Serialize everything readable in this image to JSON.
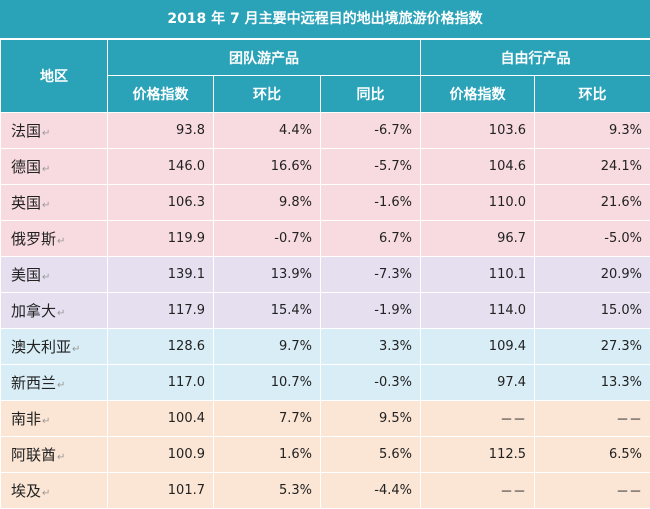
{
  "title": "2018 年 7 月主要中远程目的地出境旅游价格指数",
  "header": {
    "region": "地区",
    "group_tour": "团队游产品",
    "free_tour": "自由行产品",
    "price_index": "价格指数",
    "mom": "环比",
    "yoy": "同比"
  },
  "colors": {
    "header_bg": "#2aa3b9",
    "europe": "#f8dbe1",
    "north_america": "#e5dff0",
    "oceania": "#d8edf5",
    "africa_middle_east": "#fbe5d4"
  },
  "rows": [
    {
      "region": "法国",
      "g_price": "93.8",
      "g_mom": "4.4%",
      "g_yoy": "-6.7%",
      "f_price": "103.6",
      "f_mom": "9.3%"
    },
    {
      "region": "德国",
      "g_price": "146.0",
      "g_mom": "16.6%",
      "g_yoy": "-5.7%",
      "f_price": "104.6",
      "f_mom": "24.1%"
    },
    {
      "region": "英国",
      "g_price": "106.3",
      "g_mom": "9.8%",
      "g_yoy": "-1.6%",
      "f_price": "110.0",
      "f_mom": "21.6%"
    },
    {
      "region": "俄罗斯",
      "g_price": "119.9",
      "g_mom": "-0.7%",
      "g_yoy": "6.7%",
      "f_price": "96.7",
      "f_mom": "-5.0%"
    },
    {
      "region": "美国",
      "g_price": "139.1",
      "g_mom": "13.9%",
      "g_yoy": "-7.3%",
      "f_price": "110.1",
      "f_mom": "20.9%"
    },
    {
      "region": "加拿大",
      "g_price": "117.9",
      "g_mom": "15.4%",
      "g_yoy": "-1.9%",
      "f_price": "114.0",
      "f_mom": "15.0%"
    },
    {
      "region": "澳大利亚",
      "g_price": "128.6",
      "g_mom": "9.7%",
      "g_yoy": "3.3%",
      "f_price": "109.4",
      "f_mom": "27.3%"
    },
    {
      "region": "新西兰",
      "g_price": "117.0",
      "g_mom": "10.7%",
      "g_yoy": "-0.3%",
      "f_price": "97.4",
      "f_mom": "13.3%"
    },
    {
      "region": "南非",
      "g_price": "100.4",
      "g_mom": "7.7%",
      "g_yoy": "9.5%",
      "f_price": "－－",
      "f_mom": "－－"
    },
    {
      "region": "阿联酋",
      "g_price": "100.9",
      "g_mom": "1.6%",
      "g_yoy": "5.6%",
      "f_price": "112.5",
      "f_mom": "6.5%"
    },
    {
      "region": "埃及",
      "g_price": "101.7",
      "g_mom": "5.3%",
      "g_yoy": "-4.4%",
      "f_price": "－－",
      "f_mom": "－－"
    }
  ]
}
